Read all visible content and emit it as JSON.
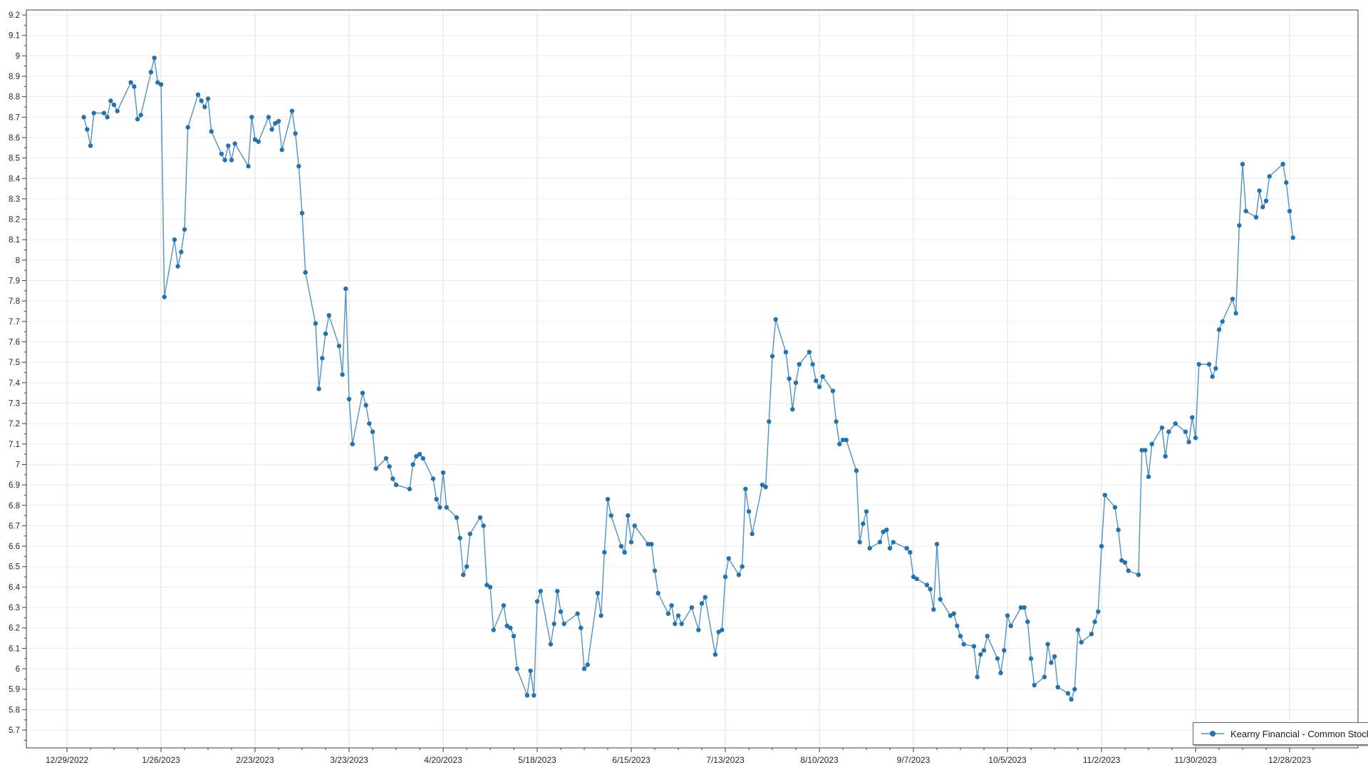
{
  "chart_data": {
    "type": "line",
    "title": "",
    "xlabel": "",
    "ylabel": "",
    "grid": true,
    "legend_position": "bottom-right",
    "ylim": [
      5.61,
      9.22
    ],
    "y_tick_labels": [
      "9.2",
      "9.1",
      "9",
      "8.9",
      "8.8",
      "8.7",
      "8.6",
      "8.5",
      "8.4",
      "8.3",
      "8.2",
      "8.1",
      "8",
      "7.9",
      "7.8",
      "7.7",
      "7.6",
      "7.5",
      "7.4",
      "7.3",
      "7.2",
      "7.1",
      "7",
      "6.9",
      "6.8",
      "6.7",
      "6.6",
      "6.5",
      "6.4",
      "6.3",
      "6.2",
      "6.1",
      "6",
      "5.9",
      "5.8",
      "5.7"
    ],
    "x_tick_labels": [
      "12/29/2022",
      "1/26/2023",
      "2/23/2023",
      "3/23/2023",
      "4/20/2023",
      "5/18/2023",
      "6/15/2023",
      "7/13/2023",
      "8/10/2023",
      "9/7/2023",
      "10/5/2023",
      "11/2/2023",
      "11/30/2023",
      "12/28/2023"
    ],
    "x_start_date": "2022-12-29",
    "x_days_per_tick": 28,
    "line_color": "#4f93c6",
    "marker_color": "#2472ae",
    "series": [
      {
        "name": "Kearny Financial - Common Stock",
        "points": [
          [
            "2023-01-03",
            8.7
          ],
          [
            "2023-01-04",
            8.64
          ],
          [
            "2023-01-05",
            8.56
          ],
          [
            "2023-01-06",
            8.72
          ],
          [
            "2023-01-09",
            8.72
          ],
          [
            "2023-01-10",
            8.7
          ],
          [
            "2023-01-11",
            8.78
          ],
          [
            "2023-01-12",
            8.76
          ],
          [
            "2023-01-13",
            8.73
          ],
          [
            "2023-01-17",
            8.87
          ],
          [
            "2023-01-18",
            8.85
          ],
          [
            "2023-01-19",
            8.69
          ],
          [
            "2023-01-20",
            8.71
          ],
          [
            "2023-01-23",
            8.92
          ],
          [
            "2023-01-24",
            8.99
          ],
          [
            "2023-01-25",
            8.87
          ],
          [
            "2023-01-26",
            8.86
          ],
          [
            "2023-01-27",
            7.82
          ],
          [
            "2023-01-30",
            8.1
          ],
          [
            "2023-01-31",
            7.97
          ],
          [
            "2023-02-01",
            8.04
          ],
          [
            "2023-02-02",
            8.15
          ],
          [
            "2023-02-03",
            8.65
          ],
          [
            "2023-02-06",
            8.81
          ],
          [
            "2023-02-07",
            8.78
          ],
          [
            "2023-02-08",
            8.75
          ],
          [
            "2023-02-09",
            8.79
          ],
          [
            "2023-02-10",
            8.63
          ],
          [
            "2023-02-13",
            8.52
          ],
          [
            "2023-02-14",
            8.49
          ],
          [
            "2023-02-15",
            8.56
          ],
          [
            "2023-02-16",
            8.49
          ],
          [
            "2023-02-17",
            8.57
          ],
          [
            "2023-02-21",
            8.46
          ],
          [
            "2023-02-22",
            8.7
          ],
          [
            "2023-02-23",
            8.59
          ],
          [
            "2023-02-24",
            8.58
          ],
          [
            "2023-02-27",
            8.7
          ],
          [
            "2023-02-28",
            8.64
          ],
          [
            "2023-03-01",
            8.67
          ],
          [
            "2023-03-02",
            8.68
          ],
          [
            "2023-03-03",
            8.54
          ],
          [
            "2023-03-06",
            8.73
          ],
          [
            "2023-03-07",
            8.62
          ],
          [
            "2023-03-08",
            8.46
          ],
          [
            "2023-03-09",
            8.23
          ],
          [
            "2023-03-10",
            7.94
          ],
          [
            "2023-03-13",
            7.69
          ],
          [
            "2023-03-14",
            7.37
          ],
          [
            "2023-03-15",
            7.52
          ],
          [
            "2023-03-16",
            7.64
          ],
          [
            "2023-03-17",
            7.73
          ],
          [
            "2023-03-20",
            7.58
          ],
          [
            "2023-03-21",
            7.44
          ],
          [
            "2023-03-22",
            7.86
          ],
          [
            "2023-03-23",
            7.32
          ],
          [
            "2023-03-24",
            7.1
          ],
          [
            "2023-03-27",
            7.35
          ],
          [
            "2023-03-28",
            7.29
          ],
          [
            "2023-03-29",
            7.2
          ],
          [
            "2023-03-30",
            7.16
          ],
          [
            "2023-03-31",
            6.98
          ],
          [
            "2023-04-03",
            7.03
          ],
          [
            "2023-04-04",
            6.99
          ],
          [
            "2023-04-05",
            6.93
          ],
          [
            "2023-04-06",
            6.9
          ],
          [
            "2023-04-10",
            6.88
          ],
          [
            "2023-04-11",
            7.0
          ],
          [
            "2023-04-12",
            7.04
          ],
          [
            "2023-04-13",
            7.05
          ],
          [
            "2023-04-14",
            7.03
          ],
          [
            "2023-04-17",
            6.93
          ],
          [
            "2023-04-18",
            6.83
          ],
          [
            "2023-04-19",
            6.79
          ],
          [
            "2023-04-20",
            6.96
          ],
          [
            "2023-04-21",
            6.79
          ],
          [
            "2023-04-24",
            6.74
          ],
          [
            "2023-04-25",
            6.64
          ],
          [
            "2023-04-26",
            6.46
          ],
          [
            "2023-04-27",
            6.5
          ],
          [
            "2023-04-28",
            6.66
          ],
          [
            "2023-05-01",
            6.74
          ],
          [
            "2023-05-02",
            6.7
          ],
          [
            "2023-05-03",
            6.41
          ],
          [
            "2023-05-04",
            6.4
          ],
          [
            "2023-05-05",
            6.19
          ],
          [
            "2023-05-08",
            6.31
          ],
          [
            "2023-05-09",
            6.21
          ],
          [
            "2023-05-10",
            6.2
          ],
          [
            "2023-05-11",
            6.16
          ],
          [
            "2023-05-12",
            6.0
          ],
          [
            "2023-05-15",
            5.87
          ],
          [
            "2023-05-16",
            5.99
          ],
          [
            "2023-05-17",
            5.87
          ],
          [
            "2023-05-18",
            6.33
          ],
          [
            "2023-05-19",
            6.38
          ],
          [
            "2023-05-22",
            6.12
          ],
          [
            "2023-05-23",
            6.22
          ],
          [
            "2023-05-24",
            6.38
          ],
          [
            "2023-05-25",
            6.28
          ],
          [
            "2023-05-26",
            6.22
          ],
          [
            "2023-05-30",
            6.27
          ],
          [
            "2023-05-31",
            6.2
          ],
          [
            "2023-06-01",
            6.0
          ],
          [
            "2023-06-02",
            6.02
          ],
          [
            "2023-06-05",
            6.37
          ],
          [
            "2023-06-06",
            6.26
          ],
          [
            "2023-06-07",
            6.57
          ],
          [
            "2023-06-08",
            6.83
          ],
          [
            "2023-06-09",
            6.75
          ],
          [
            "2023-06-12",
            6.6
          ],
          [
            "2023-06-13",
            6.57
          ],
          [
            "2023-06-14",
            6.75
          ],
          [
            "2023-06-15",
            6.62
          ],
          [
            "2023-06-16",
            6.7
          ],
          [
            "2023-06-20",
            6.61
          ],
          [
            "2023-06-21",
            6.61
          ],
          [
            "2023-06-22",
            6.48
          ],
          [
            "2023-06-23",
            6.37
          ],
          [
            "2023-06-26",
            6.27
          ],
          [
            "2023-06-27",
            6.31
          ],
          [
            "2023-06-28",
            6.22
          ],
          [
            "2023-06-29",
            6.26
          ],
          [
            "2023-06-30",
            6.22
          ],
          [
            "2023-07-03",
            6.3
          ],
          [
            "2023-07-05",
            6.19
          ],
          [
            "2023-07-06",
            6.32
          ],
          [
            "2023-07-07",
            6.35
          ],
          [
            "2023-07-10",
            6.07
          ],
          [
            "2023-07-11",
            6.18
          ],
          [
            "2023-07-12",
            6.19
          ],
          [
            "2023-07-13",
            6.45
          ],
          [
            "2023-07-14",
            6.54
          ],
          [
            "2023-07-17",
            6.46
          ],
          [
            "2023-07-18",
            6.5
          ],
          [
            "2023-07-19",
            6.88
          ],
          [
            "2023-07-20",
            6.77
          ],
          [
            "2023-07-21",
            6.66
          ],
          [
            "2023-07-24",
            6.9
          ],
          [
            "2023-07-25",
            6.89
          ],
          [
            "2023-07-26",
            7.21
          ],
          [
            "2023-07-27",
            7.53
          ],
          [
            "2023-07-28",
            7.71
          ],
          [
            "2023-07-31",
            7.55
          ],
          [
            "2023-08-01",
            7.42
          ],
          [
            "2023-08-02",
            7.27
          ],
          [
            "2023-08-03",
            7.4
          ],
          [
            "2023-08-04",
            7.49
          ],
          [
            "2023-08-07",
            7.55
          ],
          [
            "2023-08-08",
            7.49
          ],
          [
            "2023-08-09",
            7.41
          ],
          [
            "2023-08-10",
            7.38
          ],
          [
            "2023-08-11",
            7.43
          ],
          [
            "2023-08-14",
            7.36
          ],
          [
            "2023-08-15",
            7.21
          ],
          [
            "2023-08-16",
            7.1
          ],
          [
            "2023-08-17",
            7.12
          ],
          [
            "2023-08-18",
            7.12
          ],
          [
            "2023-08-21",
            6.97
          ],
          [
            "2023-08-22",
            6.62
          ],
          [
            "2023-08-23",
            6.71
          ],
          [
            "2023-08-24",
            6.77
          ],
          [
            "2023-08-25",
            6.59
          ],
          [
            "2023-08-28",
            6.62
          ],
          [
            "2023-08-29",
            6.67
          ],
          [
            "2023-08-30",
            6.68
          ],
          [
            "2023-08-31",
            6.59
          ],
          [
            "2023-09-01",
            6.62
          ],
          [
            "2023-09-05",
            6.59
          ],
          [
            "2023-09-06",
            6.57
          ],
          [
            "2023-09-07",
            6.45
          ],
          [
            "2023-09-08",
            6.44
          ],
          [
            "2023-09-11",
            6.41
          ],
          [
            "2023-09-12",
            6.39
          ],
          [
            "2023-09-13",
            6.29
          ],
          [
            "2023-09-14",
            6.61
          ],
          [
            "2023-09-15",
            6.34
          ],
          [
            "2023-09-18",
            6.26
          ],
          [
            "2023-09-19",
            6.27
          ],
          [
            "2023-09-20",
            6.21
          ],
          [
            "2023-09-21",
            6.16
          ],
          [
            "2023-09-22",
            6.12
          ],
          [
            "2023-09-25",
            6.11
          ],
          [
            "2023-09-26",
            5.96
          ],
          [
            "2023-09-27",
            6.07
          ],
          [
            "2023-09-28",
            6.09
          ],
          [
            "2023-09-29",
            6.16
          ],
          [
            "2023-10-02",
            6.05
          ],
          [
            "2023-10-03",
            5.98
          ],
          [
            "2023-10-04",
            6.09
          ],
          [
            "2023-10-05",
            6.26
          ],
          [
            "2023-10-06",
            6.21
          ],
          [
            "2023-10-09",
            6.3
          ],
          [
            "2023-10-10",
            6.3
          ],
          [
            "2023-10-11",
            6.23
          ],
          [
            "2023-10-12",
            6.05
          ],
          [
            "2023-10-13",
            5.92
          ],
          [
            "2023-10-16",
            5.96
          ],
          [
            "2023-10-17",
            6.12
          ],
          [
            "2023-10-18",
            6.03
          ],
          [
            "2023-10-19",
            6.06
          ],
          [
            "2023-10-20",
            5.91
          ],
          [
            "2023-10-23",
            5.88
          ],
          [
            "2023-10-24",
            5.85
          ],
          [
            "2023-10-25",
            5.9
          ],
          [
            "2023-10-26",
            6.19
          ],
          [
            "2023-10-27",
            6.13
          ],
          [
            "2023-10-30",
            6.17
          ],
          [
            "2023-10-31",
            6.23
          ],
          [
            "2023-11-01",
            6.28
          ],
          [
            "2023-11-02",
            6.6
          ],
          [
            "2023-11-03",
            6.85
          ],
          [
            "2023-11-06",
            6.79
          ],
          [
            "2023-11-07",
            6.68
          ],
          [
            "2023-11-08",
            6.53
          ],
          [
            "2023-11-09",
            6.52
          ],
          [
            "2023-11-10",
            6.48
          ],
          [
            "2023-11-13",
            6.46
          ],
          [
            "2023-11-14",
            7.07
          ],
          [
            "2023-11-15",
            7.07
          ],
          [
            "2023-11-16",
            6.94
          ],
          [
            "2023-11-17",
            7.1
          ],
          [
            "2023-11-20",
            7.18
          ],
          [
            "2023-11-21",
            7.04
          ],
          [
            "2023-11-22",
            7.16
          ],
          [
            "2023-11-24",
            7.2
          ],
          [
            "2023-11-27",
            7.16
          ],
          [
            "2023-11-28",
            7.11
          ],
          [
            "2023-11-29",
            7.23
          ],
          [
            "2023-11-30",
            7.13
          ],
          [
            "2023-12-01",
            7.49
          ],
          [
            "2023-12-04",
            7.49
          ],
          [
            "2023-12-05",
            7.43
          ],
          [
            "2023-12-06",
            7.47
          ],
          [
            "2023-12-07",
            7.66
          ],
          [
            "2023-12-08",
            7.7
          ],
          [
            "2023-12-11",
            7.81
          ],
          [
            "2023-12-12",
            7.74
          ],
          [
            "2023-12-13",
            8.17
          ],
          [
            "2023-12-14",
            8.47
          ],
          [
            "2023-12-15",
            8.24
          ],
          [
            "2023-12-18",
            8.21
          ],
          [
            "2023-12-19",
            8.34
          ],
          [
            "2023-12-20",
            8.26
          ],
          [
            "2023-12-21",
            8.29
          ],
          [
            "2023-12-22",
            8.41
          ],
          [
            "2023-12-26",
            8.47
          ],
          [
            "2023-12-27",
            8.38
          ],
          [
            "2023-12-28",
            8.24
          ],
          [
            "2023-12-29",
            8.11
          ]
        ]
      }
    ],
    "legend": {
      "label": "Kearny Financial - Common Stock"
    }
  }
}
